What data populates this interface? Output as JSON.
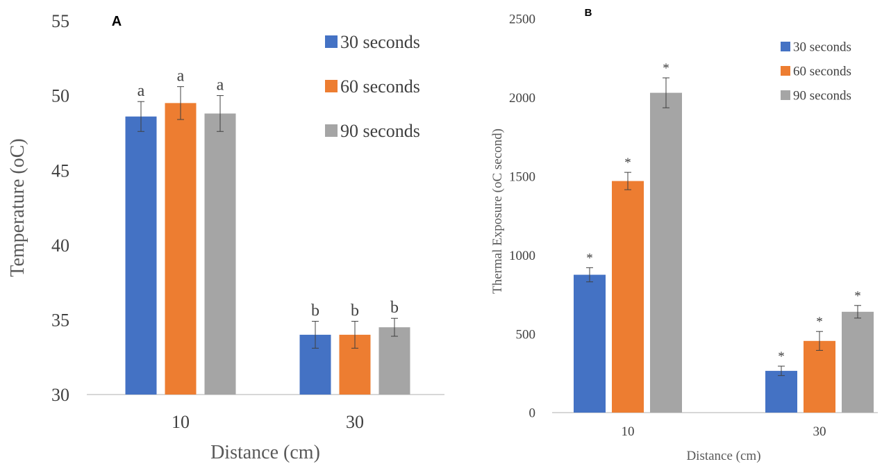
{
  "chart_data": [
    {
      "panel_label": "A",
      "type": "bar",
      "categories": [
        "10",
        "30"
      ],
      "series": [
        {
          "name": "30 seconds",
          "values": [
            48.6,
            34.0
          ],
          "errors": [
            1.0,
            0.9
          ],
          "letters": [
            "a",
            "b"
          ],
          "color": "#4472C4"
        },
        {
          "name": "60 seconds",
          "values": [
            49.5,
            34.0
          ],
          "errors": [
            1.1,
            0.9
          ],
          "letters": [
            "a",
            "b"
          ],
          "color": "#ED7D31"
        },
        {
          "name": "90 seconds",
          "values": [
            48.8,
            34.5
          ],
          "errors": [
            1.2,
            0.6
          ],
          "letters": [
            "a",
            "b"
          ],
          "color": "#A5A5A5"
        }
      ],
      "xlabel": "Distance (cm)",
      "ylabel": "Temperature (oC)",
      "ylim": [
        30,
        55
      ],
      "yticks": [
        "30",
        "35",
        "40",
        "45",
        "50",
        "55"
      ],
      "grid": false,
      "legend_position": "top-right"
    },
    {
      "panel_label": "B",
      "type": "bar",
      "categories": [
        "10",
        "30"
      ],
      "series": [
        {
          "name": "30 seconds",
          "values": [
            875,
            265
          ],
          "errors": [
            45,
            30
          ],
          "letters": [
            "*",
            "*"
          ],
          "color": "#4472C4"
        },
        {
          "name": "60 seconds",
          "values": [
            1470,
            455
          ],
          "errors": [
            55,
            60
          ],
          "letters": [
            "*",
            "*"
          ],
          "color": "#ED7D31"
        },
        {
          "name": "90 seconds",
          "values": [
            2030,
            640
          ],
          "errors": [
            95,
            40
          ],
          "letters": [
            "*",
            "*"
          ],
          "color": "#A5A5A5"
        }
      ],
      "xlabel": "Distance (cm)",
      "ylabel": "Thermal Exposure (oC second)",
      "ylim": [
        0,
        2500
      ],
      "yticks": [
        "0",
        "500",
        "1000",
        "1500",
        "2000",
        "2500"
      ],
      "grid": false,
      "legend_position": "top-right"
    }
  ]
}
